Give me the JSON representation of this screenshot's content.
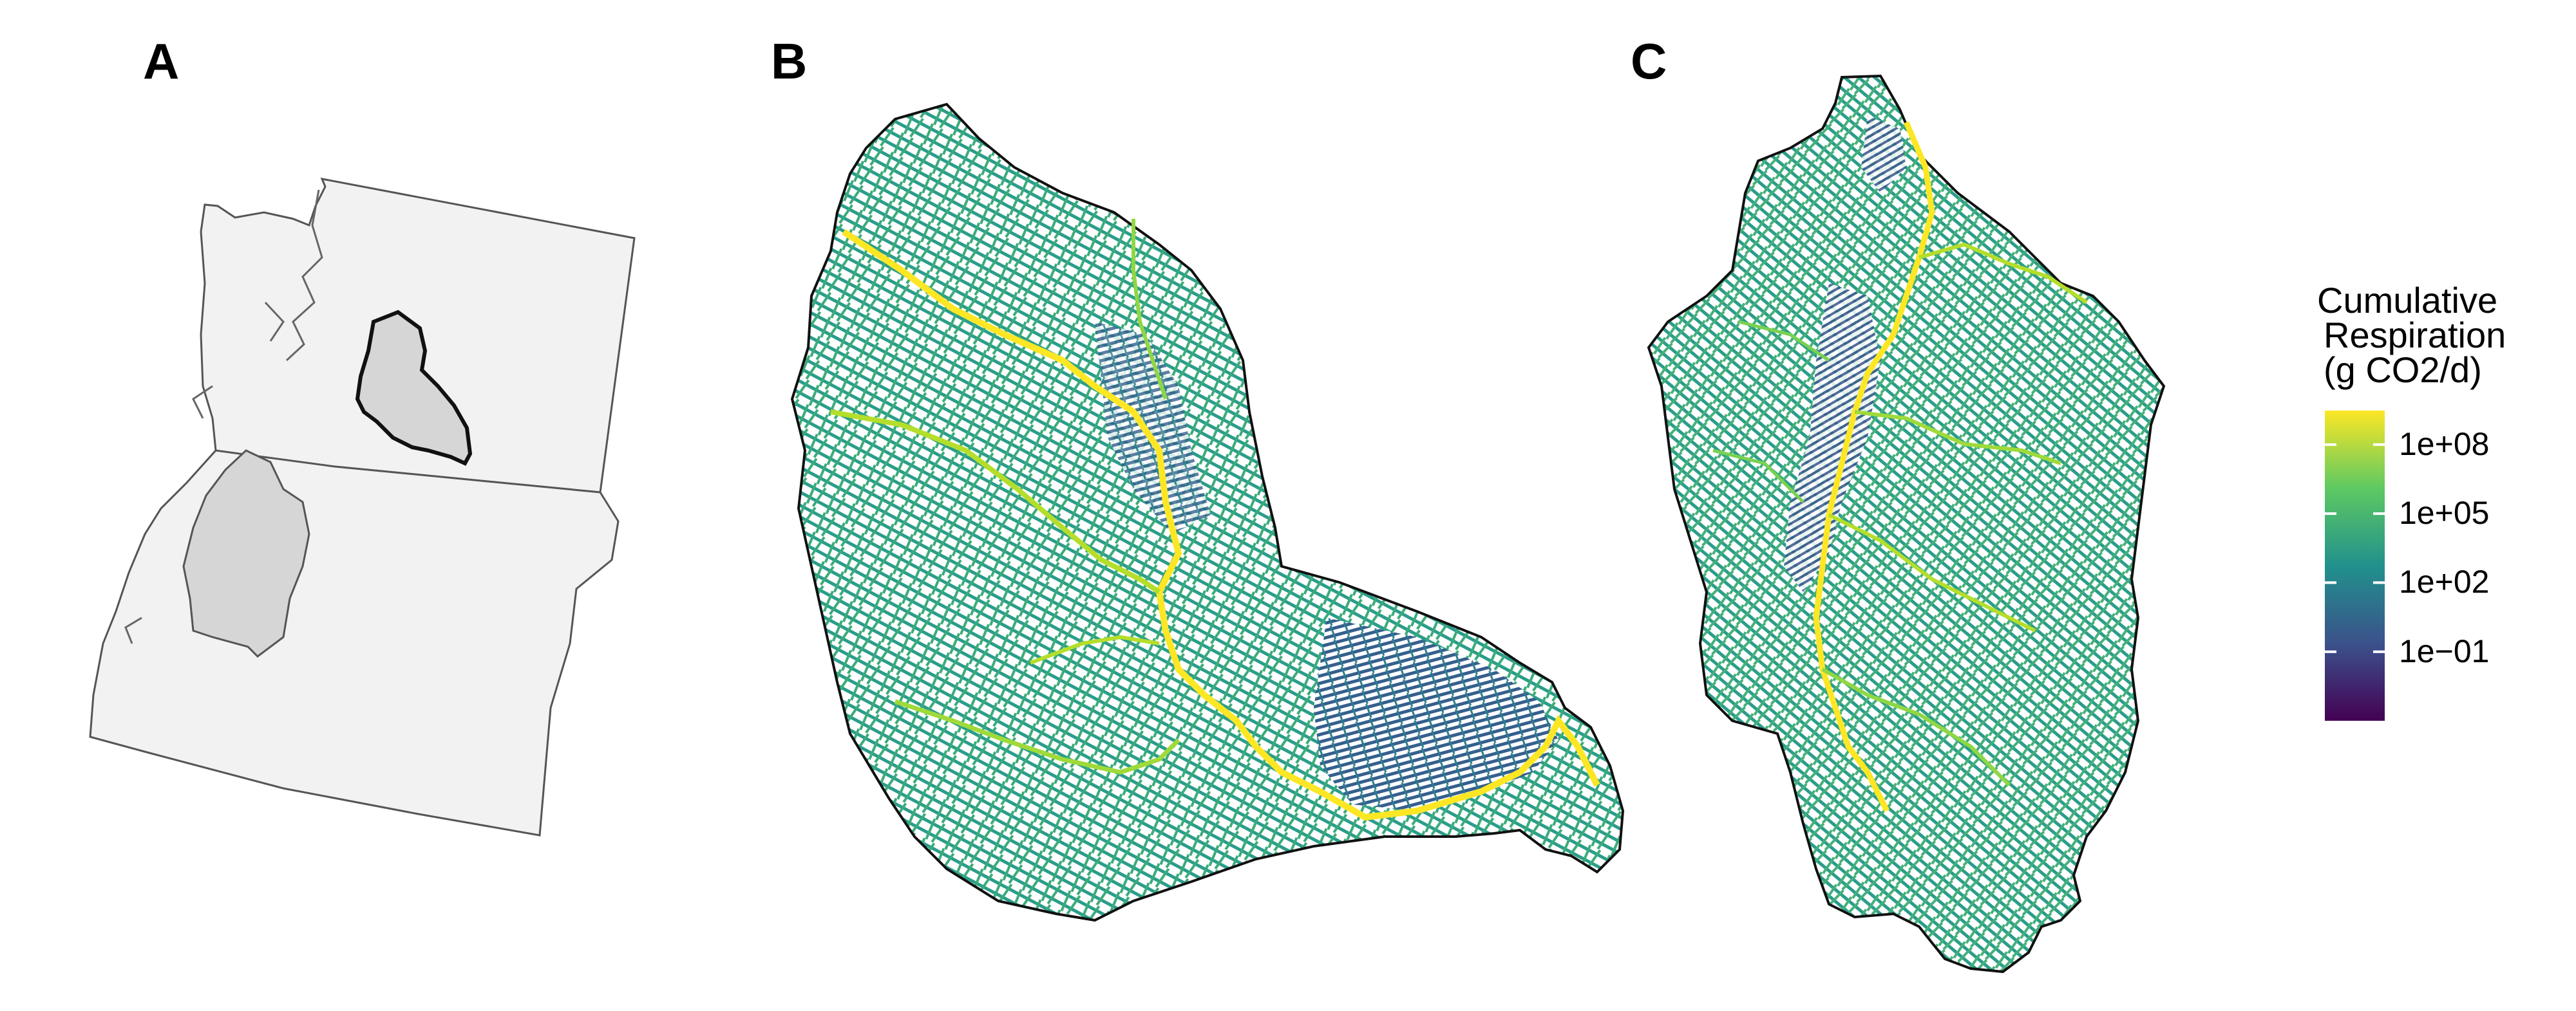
{
  "panels": [
    {
      "label": "A"
    },
    {
      "label": "B"
    },
    {
      "label": "C"
    }
  ],
  "legend": {
    "title_lines": [
      "Cumulative",
      "Respiration",
      "(g CO2/d)"
    ],
    "scale": "log10",
    "ticks": [
      {
        "label": "1e+08",
        "value": 100000000
      },
      {
        "label": "1e+05",
        "value": 100000
      },
      {
        "label": "1e+02",
        "value": 100
      },
      {
        "label": "1e−01",
        "value": 0.1
      }
    ],
    "range": [
      0.0001,
      3000000000
    ],
    "colormap": "viridis",
    "colors": [
      "#440154",
      "#3b528b",
      "#21918c",
      "#5ec962",
      "#fde725"
    ]
  },
  "map_style": {
    "land_fill": "#f2f2f2",
    "border_color": "#555555",
    "basin_fill": "#d6d6d6",
    "basin_outline": "#111111"
  }
}
